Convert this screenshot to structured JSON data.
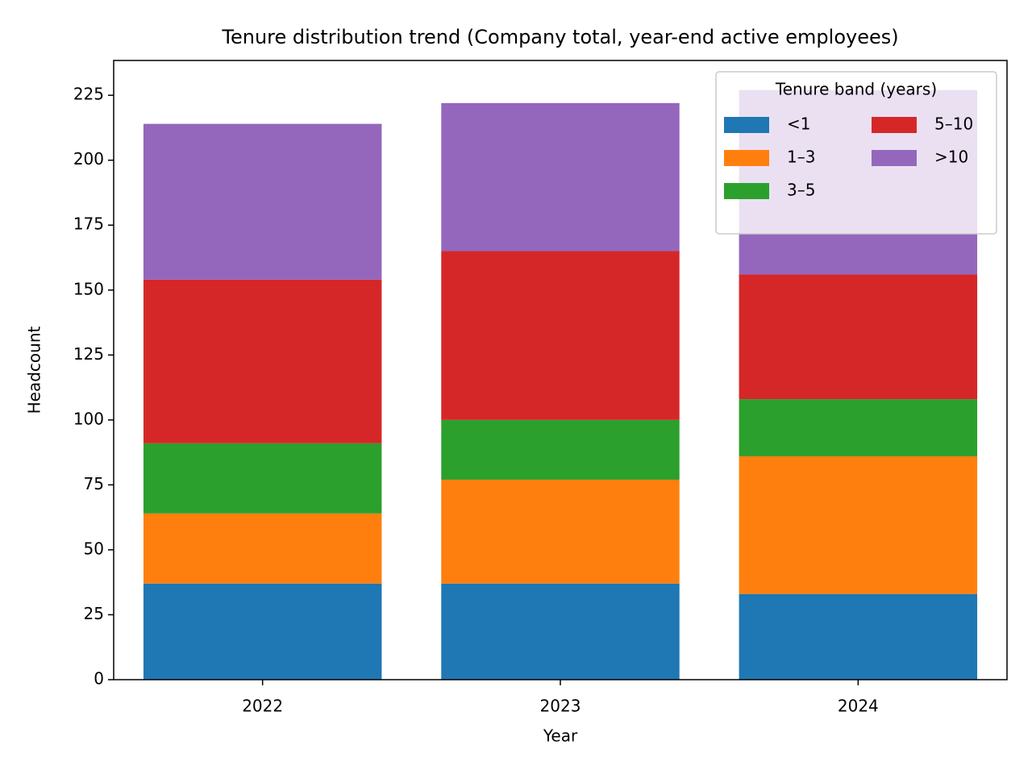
{
  "chart_data": {
    "type": "stacked_bar",
    "title": "Tenure distribution trend (Company total, year-end active employees)",
    "x_label": "Year",
    "y_label": "Headcount",
    "categories": [
      "2022",
      "2023",
      "2024"
    ],
    "series": [
      {
        "name": "<1",
        "color": "#1f77b4",
        "values": [
          37,
          37,
          33
        ]
      },
      {
        "name": "1–3",
        "color": "#ff7f0e",
        "values": [
          27,
          40,
          53
        ]
      },
      {
        "name": "3–5",
        "color": "#2ca02c",
        "values": [
          27,
          23,
          22
        ]
      },
      {
        "name": "5–10",
        "color": "#d62728",
        "values": [
          63,
          65,
          48
        ]
      },
      {
        "name": ">10",
        "color": "#9467bd",
        "values": [
          60,
          57,
          71
        ]
      }
    ],
    "ylim": [
      0,
      238.4
    ],
    "yticks": [
      0,
      25,
      50,
      75,
      100,
      125,
      150,
      175,
      200,
      225
    ],
    "legend_title": "Tenure band (years)",
    "legend_loc": "upper right",
    "legend_columns": 2
  }
}
